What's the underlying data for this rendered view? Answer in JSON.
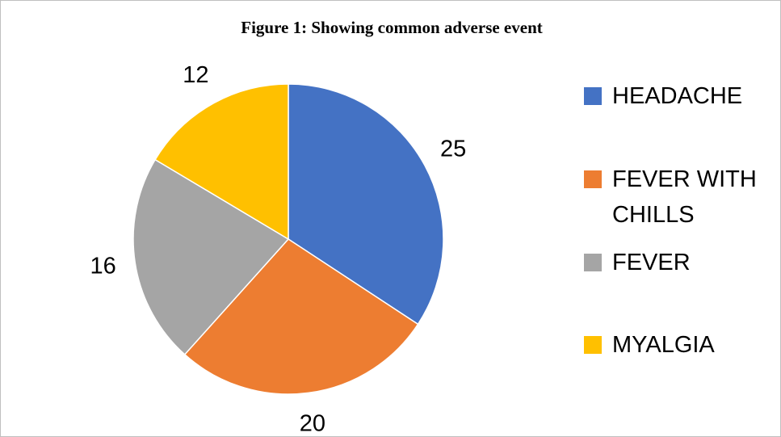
{
  "chart_data": {
    "type": "pie",
    "title": "Figure 1: Showing common adverse event",
    "categories": [
      "HEADACHE",
      "FEVER WITH CHILLS",
      "FEVER",
      "MYALGIA"
    ],
    "values": [
      25,
      20,
      16,
      12
    ],
    "colors": [
      "#4472c4",
      "#ed7d31",
      "#a5a5a5",
      "#ffc000"
    ],
    "legend": "right"
  }
}
